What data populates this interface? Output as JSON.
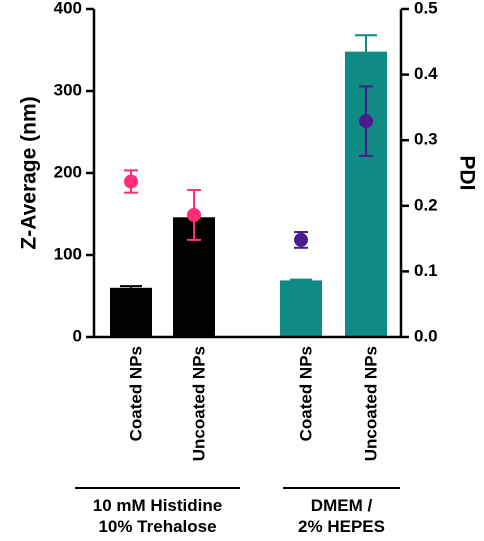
{
  "chart_data": {
    "type": "bar",
    "categories": [
      "Coated NPs",
      "Uncoated NPs",
      "Coated NPs",
      "Uncoated NPs"
    ],
    "groups": [
      {
        "label_lines": [
          "10 mM Histidine",
          "10% Trehalose"
        ],
        "members": [
          0,
          1
        ]
      },
      {
        "label_lines": [
          "DMEM /",
          "2% HEPES"
        ],
        "members": [
          2,
          3
        ]
      }
    ],
    "bars": {
      "name": "Z-Average",
      "values": [
        60,
        146,
        69,
        348
      ],
      "errors": [
        2,
        0,
        1,
        20
      ],
      "colors": [
        "#000000",
        "#000000",
        "#0f8a85",
        "#0f8a85"
      ]
    },
    "points": {
      "name": "PDI",
      "values": [
        0.237,
        0.186,
        0.148,
        0.329
      ],
      "errors": [
        0.017,
        0.038,
        0.012,
        0.053
      ],
      "colors": [
        "#ff2d7a",
        "#ff2d7a",
        "#4b1a8c",
        "#4b1a8c"
      ]
    },
    "left_axis": {
      "label": "Z-Average (nm)",
      "ylim": [
        0,
        400
      ],
      "ticks": [
        "0",
        "100",
        "200",
        "300",
        "400"
      ]
    },
    "right_axis": {
      "label": "PDI",
      "ylim": [
        0,
        0.5
      ],
      "ticks": [
        "0.0",
        "0.1",
        "0.2",
        "0.3",
        "0.4",
        "0.5"
      ]
    },
    "grid": false
  }
}
